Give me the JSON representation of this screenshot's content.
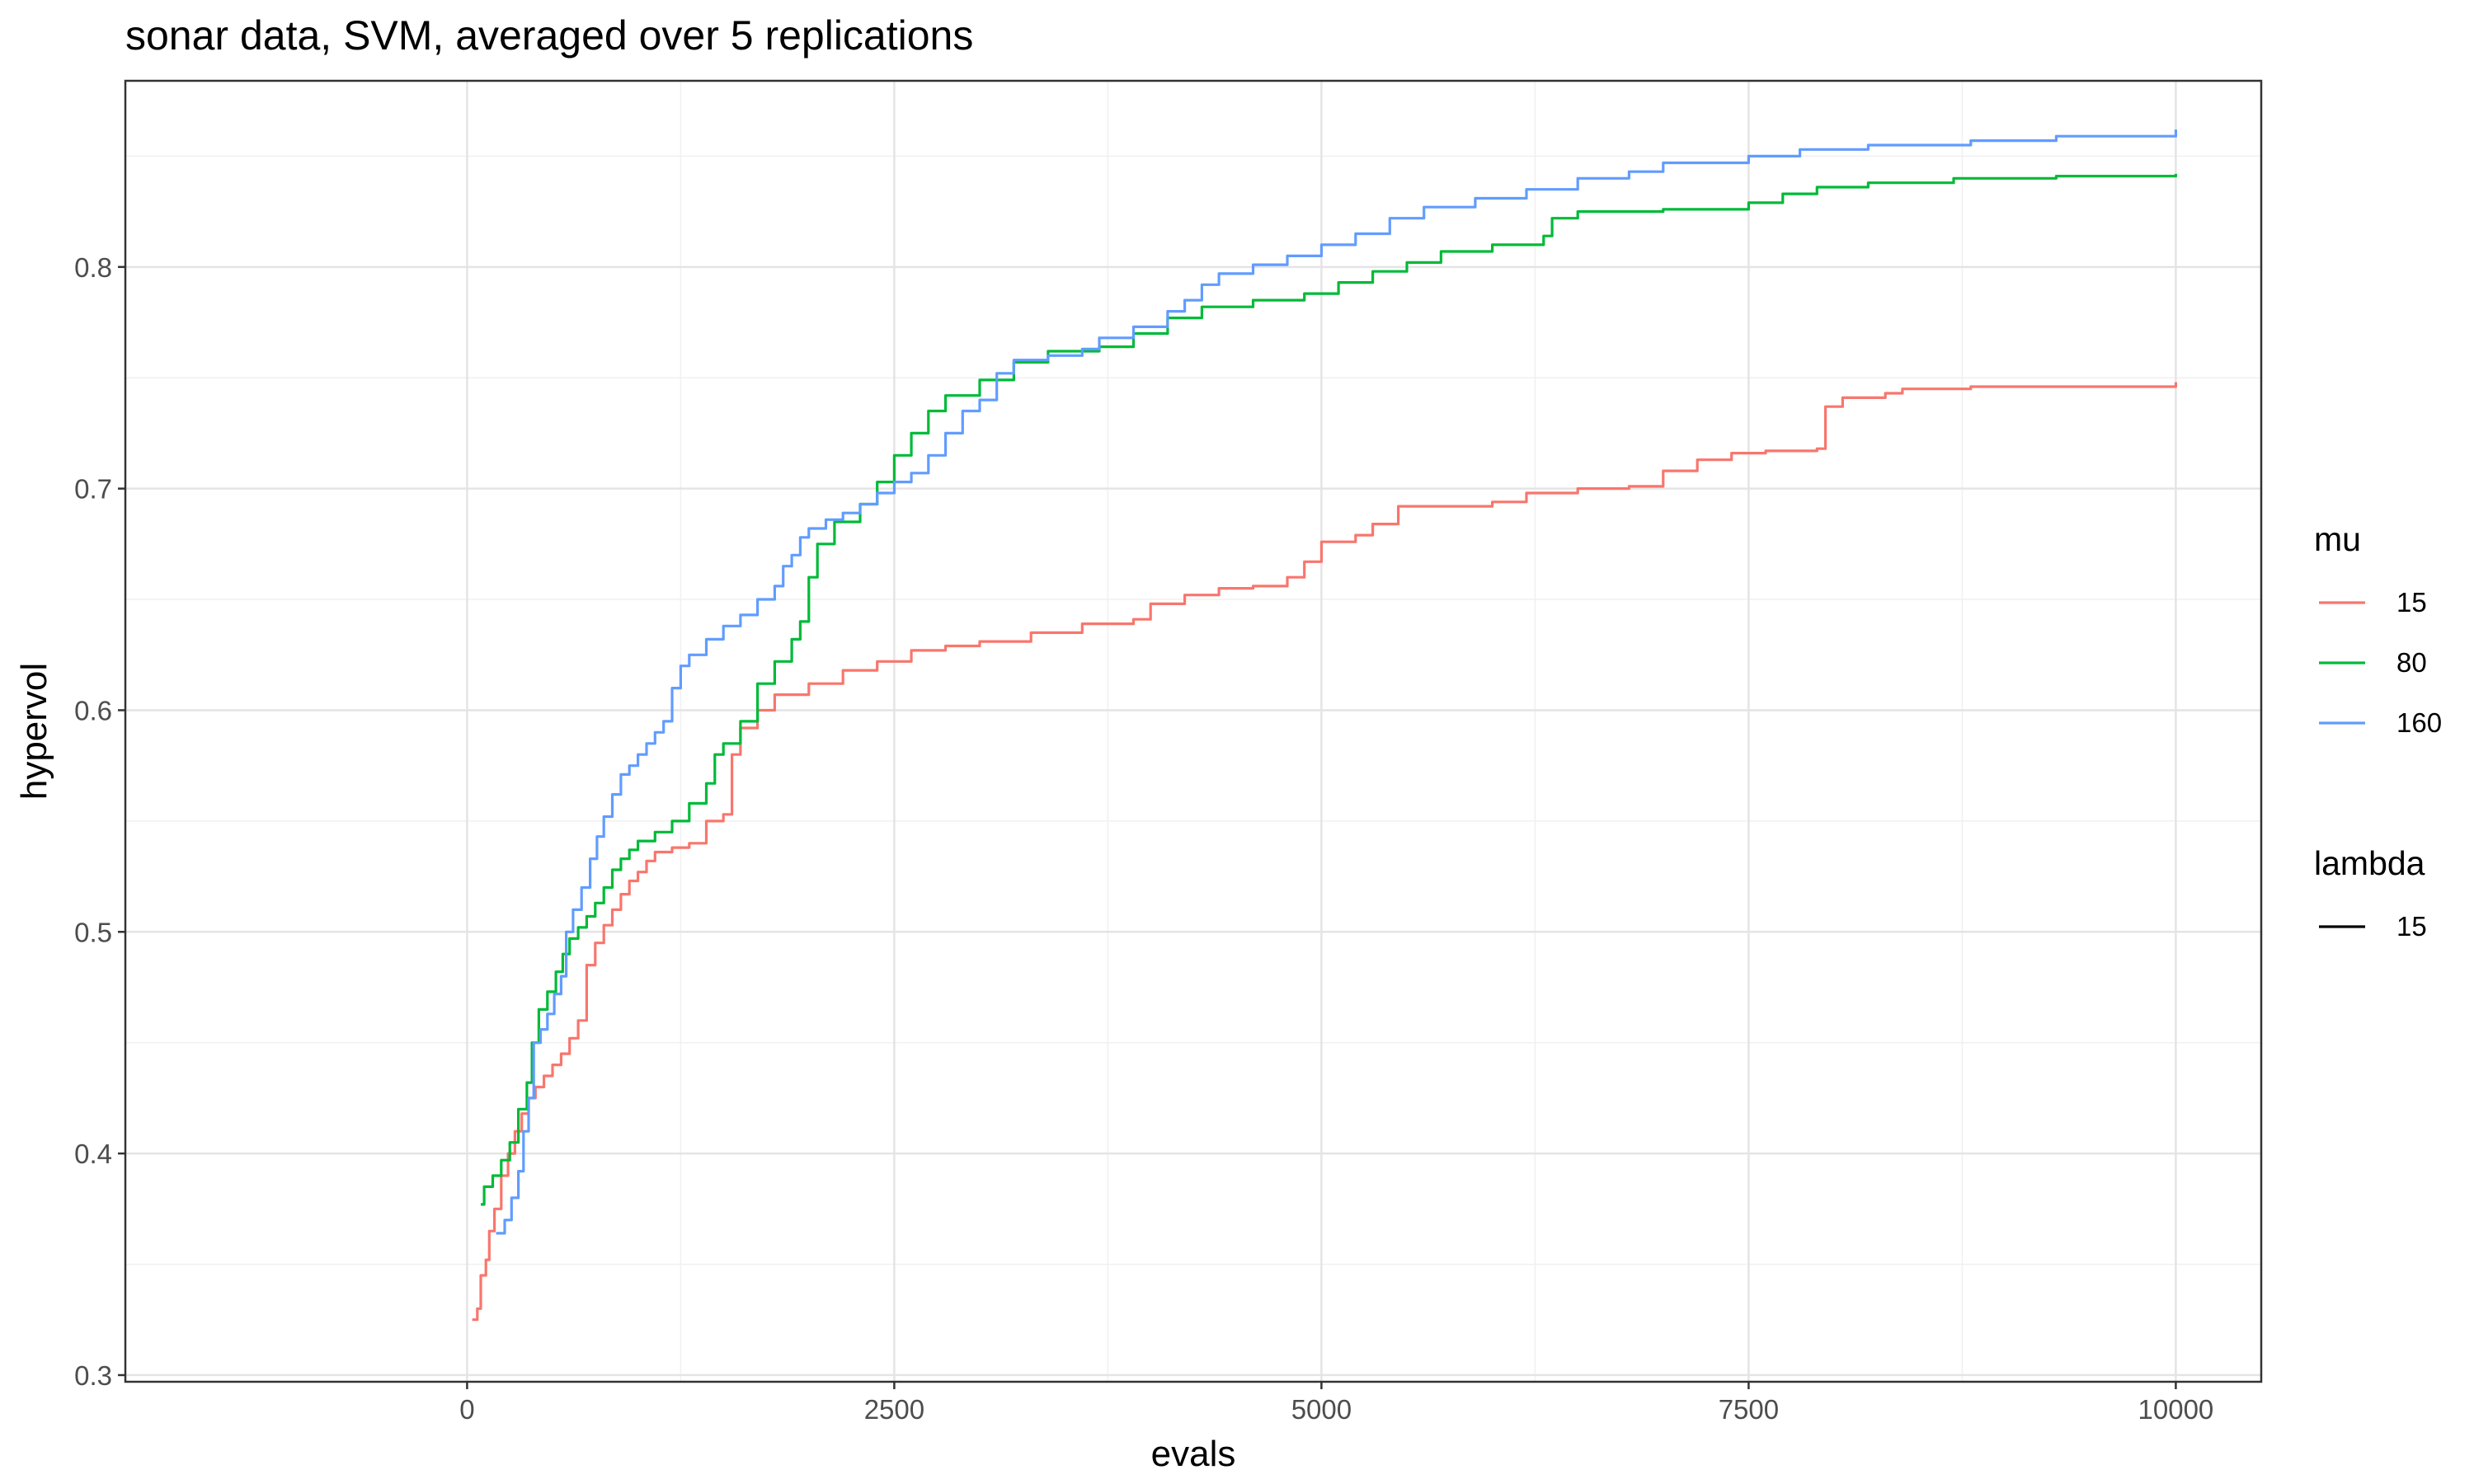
{
  "chart_data": {
    "type": "line",
    "title": "sonar data, SVM, averaged over 5 replications",
    "xlabel": "evals",
    "ylabel": "hypervol",
    "xlim": [
      -2000,
      10500
    ],
    "ylim": [
      0.297,
      0.884
    ],
    "x_ticks": [
      {
        "value": 0,
        "label": "0"
      },
      {
        "value": 2500,
        "label": "2500"
      },
      {
        "value": 5000,
        "label": "5000"
      },
      {
        "value": 7500,
        "label": "7500"
      },
      {
        "value": 10000,
        "label": "10000"
      }
    ],
    "y_ticks": [
      {
        "value": 0.3,
        "label": "0.3"
      },
      {
        "value": 0.4,
        "label": "0.4"
      },
      {
        "value": 0.5,
        "label": "0.5"
      },
      {
        "value": 0.6,
        "label": "0.6"
      },
      {
        "value": 0.7,
        "label": "0.7"
      },
      {
        "value": 0.8,
        "label": "0.8"
      }
    ],
    "grid": true,
    "legend_position": "right",
    "legends": [
      {
        "title": "mu",
        "entries": [
          {
            "label": "15",
            "color": "#F8766D"
          },
          {
            "label": "80",
            "color": "#00BA38"
          },
          {
            "label": "160",
            "color": "#619CFF"
          }
        ]
      },
      {
        "title": "lambda",
        "entries": [
          {
            "label": "15",
            "color": "#000000"
          }
        ]
      }
    ],
    "series": [
      {
        "name": "15",
        "color": "#F8766D",
        "points": [
          [
            30,
            0.325
          ],
          [
            60,
            0.33
          ],
          [
            80,
            0.345
          ],
          [
            110,
            0.352
          ],
          [
            130,
            0.365
          ],
          [
            160,
            0.375
          ],
          [
            200,
            0.39
          ],
          [
            240,
            0.4
          ],
          [
            280,
            0.41
          ],
          [
            320,
            0.418
          ],
          [
            360,
            0.425
          ],
          [
            400,
            0.43
          ],
          [
            450,
            0.435
          ],
          [
            500,
            0.44
          ],
          [
            550,
            0.445
          ],
          [
            600,
            0.452
          ],
          [
            650,
            0.46
          ],
          [
            700,
            0.485
          ],
          [
            750,
            0.495
          ],
          [
            800,
            0.503
          ],
          [
            850,
            0.51
          ],
          [
            900,
            0.517
          ],
          [
            950,
            0.523
          ],
          [
            1000,
            0.527
          ],
          [
            1050,
            0.532
          ],
          [
            1100,
            0.536
          ],
          [
            1200,
            0.538
          ],
          [
            1300,
            0.54
          ],
          [
            1400,
            0.55
          ],
          [
            1500,
            0.553
          ],
          [
            1550,
            0.58
          ],
          [
            1600,
            0.592
          ],
          [
            1700,
            0.6
          ],
          [
            1800,
            0.607
          ],
          [
            2000,
            0.612
          ],
          [
            2200,
            0.618
          ],
          [
            2400,
            0.622
          ],
          [
            2600,
            0.627
          ],
          [
            2800,
            0.629
          ],
          [
            3000,
            0.631
          ],
          [
            3300,
            0.635
          ],
          [
            3600,
            0.639
          ],
          [
            3900,
            0.641
          ],
          [
            4000,
            0.648
          ],
          [
            4200,
            0.652
          ],
          [
            4400,
            0.655
          ],
          [
            4600,
            0.656
          ],
          [
            4800,
            0.66
          ],
          [
            4900,
            0.667
          ],
          [
            5000,
            0.676
          ],
          [
            5200,
            0.679
          ],
          [
            5300,
            0.684
          ],
          [
            5450,
            0.692
          ],
          [
            5700,
            0.692
          ],
          [
            6000,
            0.694
          ],
          [
            6200,
            0.698
          ],
          [
            6500,
            0.7
          ],
          [
            6800,
            0.701
          ],
          [
            7000,
            0.708
          ],
          [
            7200,
            0.713
          ],
          [
            7400,
            0.716
          ],
          [
            7600,
            0.717
          ],
          [
            7900,
            0.718
          ],
          [
            7950,
            0.737
          ],
          [
            8050,
            0.741
          ],
          [
            8300,
            0.743
          ],
          [
            8400,
            0.745
          ],
          [
            8800,
            0.746
          ],
          [
            9500,
            0.746
          ],
          [
            10000,
            0.748
          ]
        ]
      },
      {
        "name": "80",
        "color": "#00BA38",
        "points": [
          [
            80,
            0.377
          ],
          [
            100,
            0.385
          ],
          [
            150,
            0.39
          ],
          [
            200,
            0.397
          ],
          [
            250,
            0.405
          ],
          [
            300,
            0.42
          ],
          [
            350,
            0.432
          ],
          [
            380,
            0.45
          ],
          [
            420,
            0.465
          ],
          [
            470,
            0.473
          ],
          [
            520,
            0.482
          ],
          [
            560,
            0.49
          ],
          [
            600,
            0.497
          ],
          [
            650,
            0.502
          ],
          [
            700,
            0.507
          ],
          [
            750,
            0.513
          ],
          [
            800,
            0.52
          ],
          [
            850,
            0.528
          ],
          [
            900,
            0.533
          ],
          [
            950,
            0.537
          ],
          [
            1000,
            0.541
          ],
          [
            1100,
            0.545
          ],
          [
            1200,
            0.55
          ],
          [
            1300,
            0.558
          ],
          [
            1400,
            0.567
          ],
          [
            1450,
            0.58
          ],
          [
            1500,
            0.585
          ],
          [
            1600,
            0.595
          ],
          [
            1700,
            0.612
          ],
          [
            1800,
            0.622
          ],
          [
            1900,
            0.632
          ],
          [
            1950,
            0.64
          ],
          [
            2000,
            0.66
          ],
          [
            2050,
            0.675
          ],
          [
            2150,
            0.685
          ],
          [
            2300,
            0.693
          ],
          [
            2400,
            0.703
          ],
          [
            2500,
            0.715
          ],
          [
            2600,
            0.725
          ],
          [
            2700,
            0.735
          ],
          [
            2800,
            0.742
          ],
          [
            3000,
            0.749
          ],
          [
            3200,
            0.757
          ],
          [
            3400,
            0.762
          ],
          [
            3700,
            0.764
          ],
          [
            3900,
            0.77
          ],
          [
            4100,
            0.777
          ],
          [
            4300,
            0.782
          ],
          [
            4600,
            0.785
          ],
          [
            4900,
            0.788
          ],
          [
            5100,
            0.793
          ],
          [
            5300,
            0.798
          ],
          [
            5500,
            0.802
          ],
          [
            5700,
            0.807
          ],
          [
            6000,
            0.81
          ],
          [
            6300,
            0.814
          ],
          [
            6350,
            0.822
          ],
          [
            6500,
            0.825
          ],
          [
            7000,
            0.826
          ],
          [
            7500,
            0.829
          ],
          [
            7700,
            0.833
          ],
          [
            7900,
            0.836
          ],
          [
            8200,
            0.838
          ],
          [
            8700,
            0.84
          ],
          [
            9300,
            0.841
          ],
          [
            10000,
            0.842
          ]
        ]
      },
      {
        "name": "160",
        "color": "#619CFF",
        "points": [
          [
            170,
            0.364
          ],
          [
            220,
            0.37
          ],
          [
            260,
            0.38
          ],
          [
            300,
            0.392
          ],
          [
            330,
            0.41
          ],
          [
            360,
            0.425
          ],
          [
            390,
            0.45
          ],
          [
            430,
            0.456
          ],
          [
            470,
            0.463
          ],
          [
            510,
            0.472
          ],
          [
            550,
            0.48
          ],
          [
            580,
            0.5
          ],
          [
            620,
            0.51
          ],
          [
            670,
            0.52
          ],
          [
            720,
            0.533
          ],
          [
            760,
            0.543
          ],
          [
            800,
            0.552
          ],
          [
            850,
            0.562
          ],
          [
            900,
            0.571
          ],
          [
            950,
            0.575
          ],
          [
            1000,
            0.58
          ],
          [
            1050,
            0.585
          ],
          [
            1100,
            0.59
          ],
          [
            1150,
            0.595
          ],
          [
            1200,
            0.61
          ],
          [
            1250,
            0.62
          ],
          [
            1300,
            0.625
          ],
          [
            1400,
            0.632
          ],
          [
            1500,
            0.638
          ],
          [
            1600,
            0.643
          ],
          [
            1700,
            0.65
          ],
          [
            1800,
            0.656
          ],
          [
            1850,
            0.665
          ],
          [
            1900,
            0.67
          ],
          [
            1950,
            0.678
          ],
          [
            2000,
            0.682
          ],
          [
            2100,
            0.686
          ],
          [
            2200,
            0.689
          ],
          [
            2300,
            0.693
          ],
          [
            2400,
            0.698
          ],
          [
            2500,
            0.703
          ],
          [
            2600,
            0.707
          ],
          [
            2700,
            0.715
          ],
          [
            2800,
            0.725
          ],
          [
            2900,
            0.735
          ],
          [
            3000,
            0.74
          ],
          [
            3100,
            0.752
          ],
          [
            3200,
            0.758
          ],
          [
            3400,
            0.76
          ],
          [
            3600,
            0.763
          ],
          [
            3700,
            0.768
          ],
          [
            3900,
            0.773
          ],
          [
            4100,
            0.78
          ],
          [
            4200,
            0.785
          ],
          [
            4300,
            0.792
          ],
          [
            4400,
            0.797
          ],
          [
            4600,
            0.801
          ],
          [
            4800,
            0.805
          ],
          [
            5000,
            0.81
          ],
          [
            5200,
            0.815
          ],
          [
            5400,
            0.822
          ],
          [
            5600,
            0.827
          ],
          [
            5900,
            0.831
          ],
          [
            6200,
            0.835
          ],
          [
            6500,
            0.84
          ],
          [
            6800,
            0.843
          ],
          [
            7000,
            0.847
          ],
          [
            7500,
            0.85
          ],
          [
            7800,
            0.853
          ],
          [
            8200,
            0.855
          ],
          [
            8800,
            0.857
          ],
          [
            9300,
            0.859
          ],
          [
            10000,
            0.862
          ]
        ]
      }
    ]
  }
}
